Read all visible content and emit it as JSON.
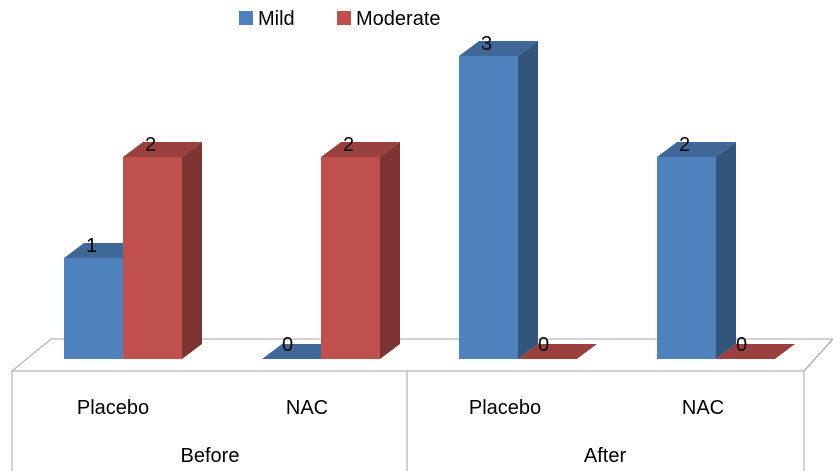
{
  "chart_data": {
    "type": "bar",
    "style": "3d-clustered-column",
    "legend_position": "top",
    "ylim": [
      0,
      3
    ],
    "grid": false,
    "categories": [
      {
        "group": "Before",
        "label": "Placebo"
      },
      {
        "group": "Before",
        "label": "NAC"
      },
      {
        "group": "After",
        "label": "Placebo"
      },
      {
        "group": "After",
        "label": "NAC"
      }
    ],
    "groups": [
      "Before",
      "After"
    ],
    "series": [
      {
        "name": "Mild",
        "color": "#4f81bd",
        "values": [
          1,
          0,
          3,
          2
        ]
      },
      {
        "name": "Moderate",
        "color": "#c0504d",
        "values": [
          2,
          2,
          0,
          0
        ]
      }
    ],
    "data_labels": true
  }
}
